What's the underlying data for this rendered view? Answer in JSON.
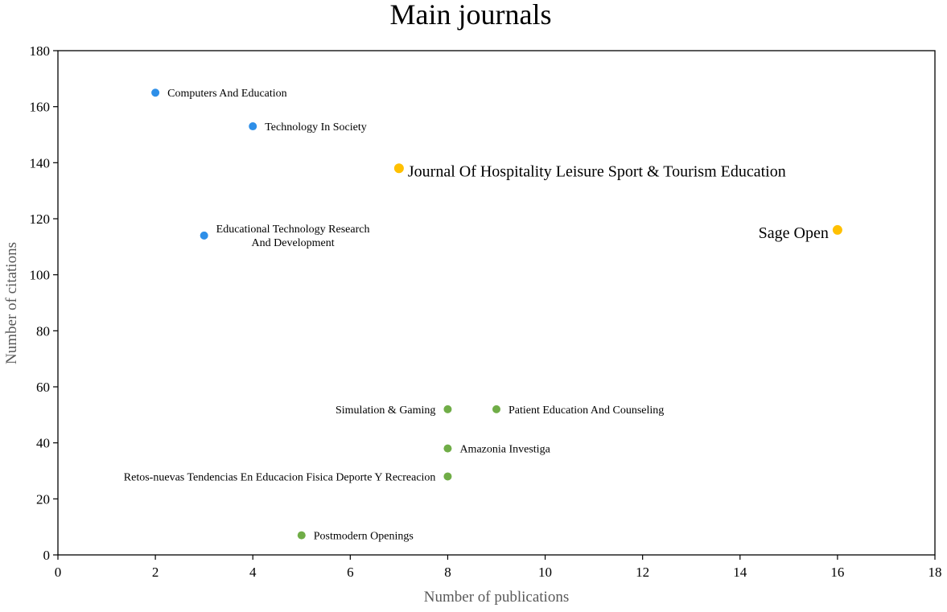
{
  "chart_data": {
    "type": "scatter",
    "title": "Main journals",
    "xlabel": "Number of publications",
    "ylabel": "Number of citations",
    "xlim": [
      0,
      18
    ],
    "ylim": [
      0,
      180
    ],
    "xticks": [
      "0",
      "2",
      "4",
      "6",
      "8",
      "10",
      "12",
      "14",
      "16",
      "18"
    ],
    "yticks": [
      "0",
      "20",
      "40",
      "60",
      "80",
      "100",
      "120",
      "140",
      "160",
      "180"
    ],
    "grid": false,
    "legend": "none",
    "colors": {
      "blue": "#2e8fe8",
      "yellow": "#ffc000",
      "green": "#70ad47"
    },
    "points": [
      {
        "name": "Computers And Education",
        "label_lines": [
          "Computers And Education"
        ],
        "x": 2,
        "y": 165,
        "color": "blue",
        "size": "small",
        "label_side": "right"
      },
      {
        "name": "Technology In Society",
        "label_lines": [
          "Technology In Society"
        ],
        "x": 4,
        "y": 153,
        "color": "blue",
        "size": "small",
        "label_side": "right"
      },
      {
        "name": "Journal Of Hospitality Leisure Sport & Tourism Education",
        "label_lines": [
          "Journal Of Hospitality Leisure Sport & Tourism Education"
        ],
        "x": 7,
        "y": 138,
        "color": "yellow",
        "size": "large",
        "label_side": "right"
      },
      {
        "name": "Educational Technology Research And Development",
        "label_lines": [
          "Educational Technology Research",
          "And Development"
        ],
        "x": 3,
        "y": 114,
        "color": "blue",
        "size": "small",
        "label_side": "right"
      },
      {
        "name": "Sage Open",
        "label_lines": [
          "Sage Open"
        ],
        "x": 16,
        "y": 116,
        "color": "yellow",
        "size": "large",
        "label_side": "left"
      },
      {
        "name": "Simulation & Gaming",
        "label_lines": [
          "Simulation & Gaming"
        ],
        "x": 8,
        "y": 52,
        "color": "green",
        "size": "small",
        "label_side": "left"
      },
      {
        "name": "Patient Education And Counseling",
        "label_lines": [
          "Patient Education And Counseling"
        ],
        "x": 9,
        "y": 52,
        "color": "green",
        "size": "small",
        "label_side": "right"
      },
      {
        "name": "Amazonia Investiga",
        "label_lines": [
          "Amazonia Investiga"
        ],
        "x": 8,
        "y": 38,
        "color": "green",
        "size": "small",
        "label_side": "right"
      },
      {
        "name": "Retos-nuevas Tendencias En Educacion Fisica Deporte Y Recreacion",
        "label_lines": [
          "Retos-nuevas Tendencias En Educacion Fisica Deporte Y Recreacion"
        ],
        "x": 8,
        "y": 28,
        "color": "green",
        "size": "small",
        "label_side": "left"
      },
      {
        "name": "Postmodern Openings",
        "label_lines": [
          "Postmodern Openings"
        ],
        "x": 5,
        "y": 7,
        "color": "green",
        "size": "small",
        "label_side": "right"
      }
    ]
  }
}
